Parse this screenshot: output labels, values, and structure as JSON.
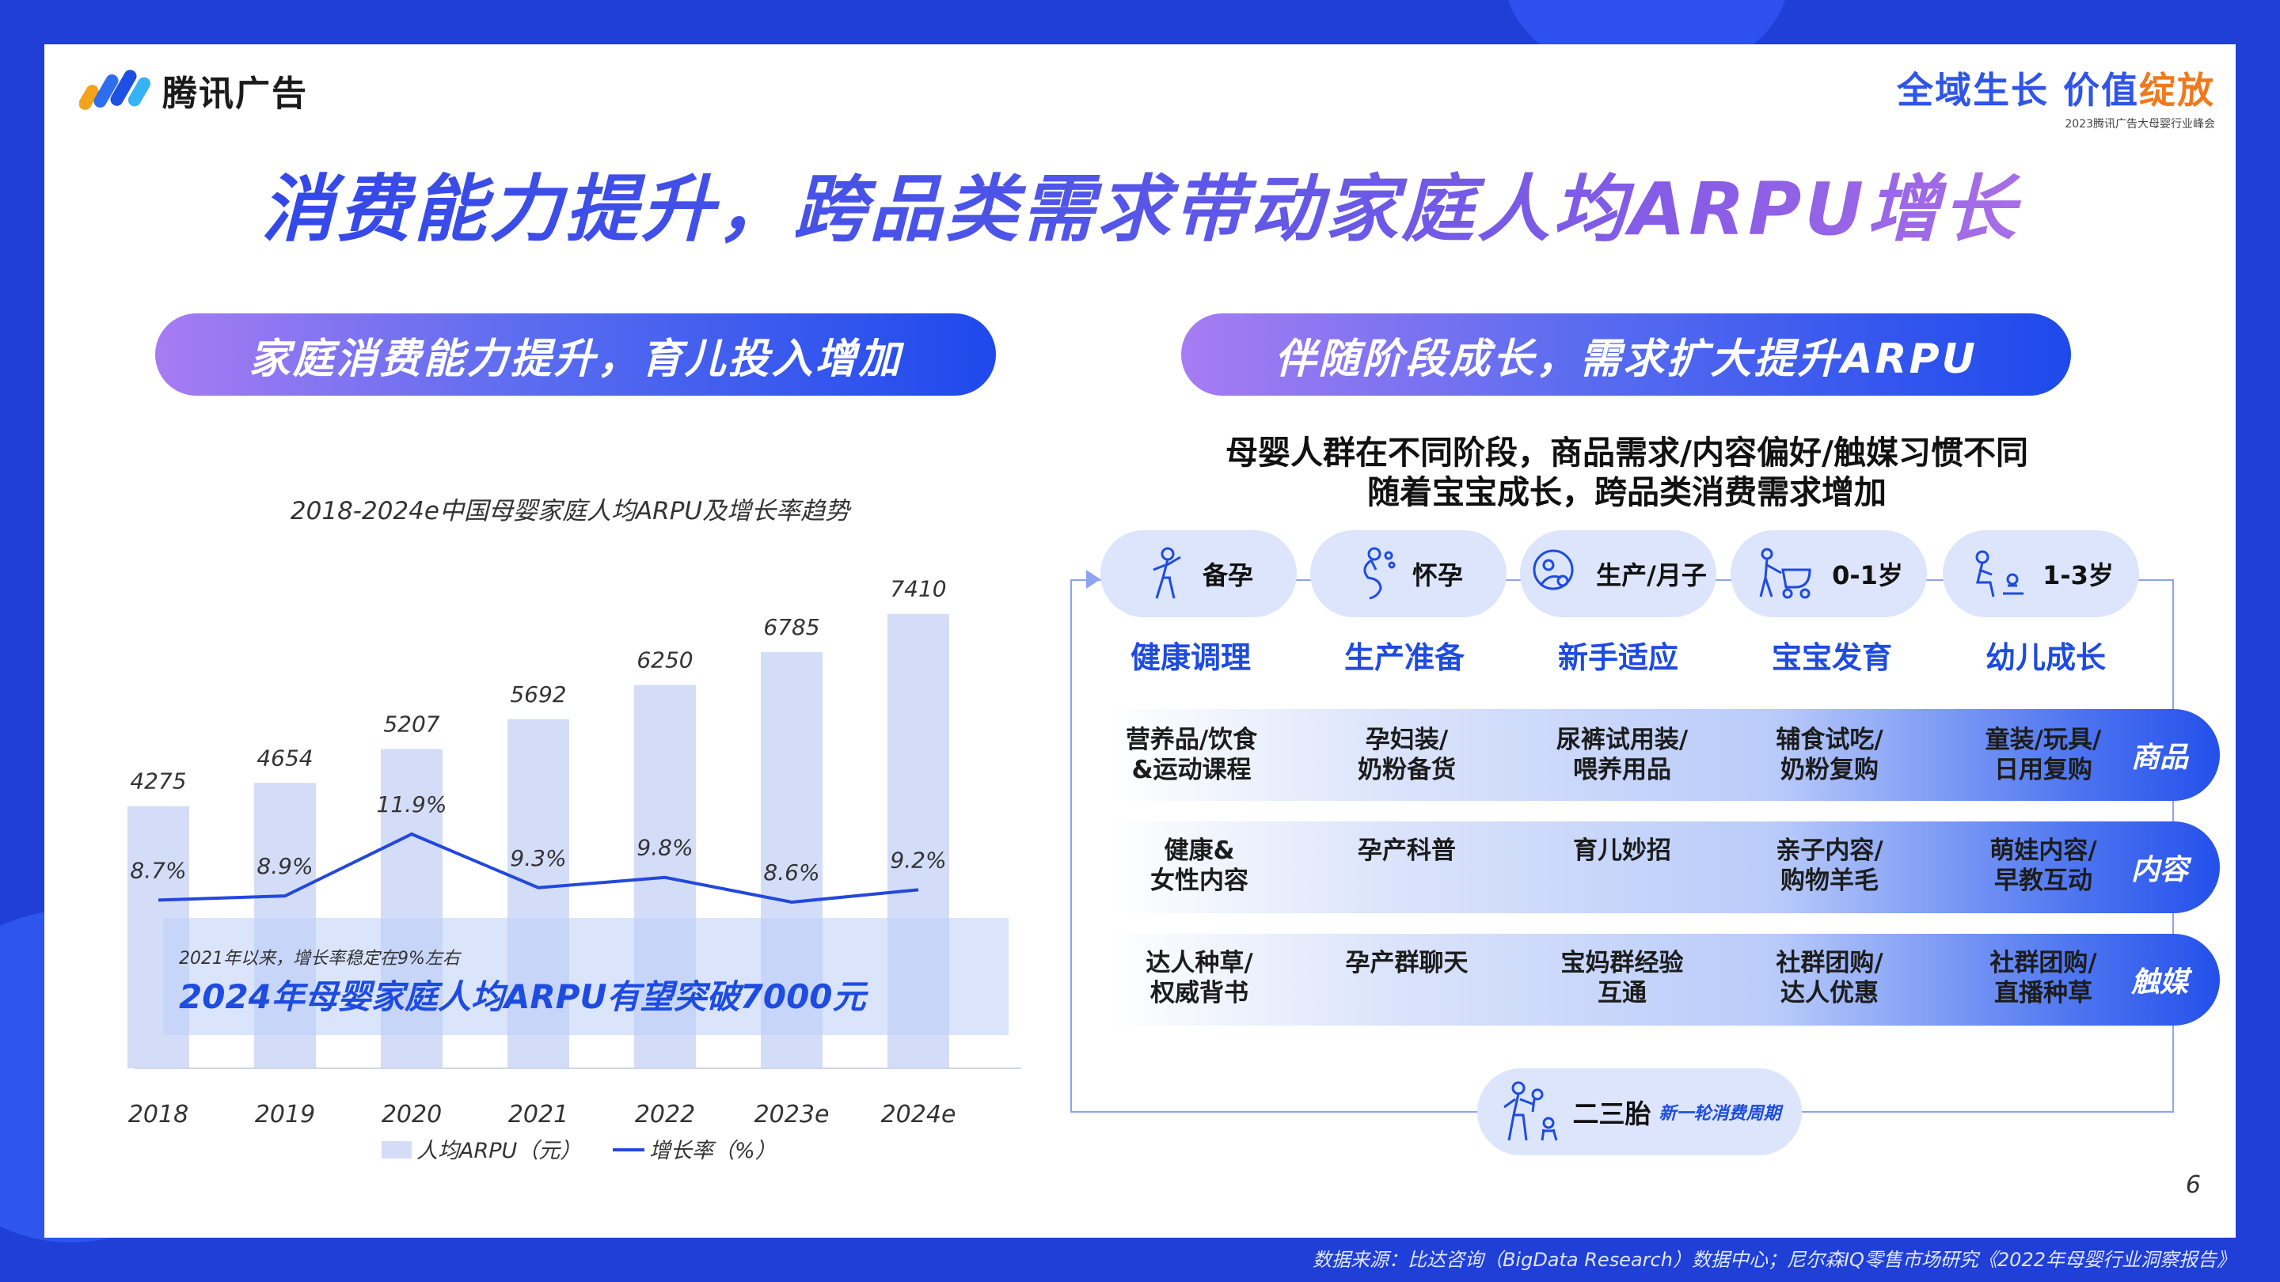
{
  "brand": {
    "name": "腾讯广告"
  },
  "slogan": {
    "part1": "全域生长",
    "part2": "价值",
    "part3": "绽放",
    "sub": "2023腾讯广告大母婴行业峰会"
  },
  "title": "消费能力提升，跨品类需求带动家庭人均ARPU增长",
  "left_pill": "家庭消费能力提升，育儿投入增加",
  "right_pill": "伴随阶段成长，需求扩大提升ARPU",
  "chart_title": "2018-2024e中国母婴家庭人均ARPU及增长率趋势",
  "chart_data": {
    "type": "bar",
    "categories": [
      "2018",
      "2019",
      "2020",
      "2021",
      "2022",
      "2023e",
      "2024e"
    ],
    "series": [
      {
        "name": "人均ARPU（元）",
        "type": "bar",
        "values": [
          4275,
          4654,
          5207,
          5692,
          6250,
          6785,
          7410
        ],
        "value_labels": [
          "4275",
          "4654",
          "5207",
          "5692",
          "6250",
          "6785",
          "7410"
        ]
      },
      {
        "name": "增长率（%）",
        "type": "line",
        "values": [
          8.7,
          8.9,
          11.9,
          9.3,
          9.8,
          8.6,
          9.2
        ],
        "value_labels": [
          "8.7%",
          "8.9%",
          "11.9%",
          "9.3%",
          "9.8%",
          "8.6%",
          "9.2%"
        ]
      }
    ],
    "legend": [
      "人均ARPU（元）",
      "增长率（%）"
    ],
    "legend_position": "bottom",
    "annotation": {
      "small": "2021年以来，增长率稳定在9%左右",
      "big": "2024年母婴家庭人均ARPU有望突破7000元"
    },
    "colors": {
      "bar": "#d4ddf8",
      "line": "#2348db",
      "overlay": "#bccdf7"
    }
  },
  "right_subtitle": [
    "母婴人群在不同阶段，商品需求/内容偏好/触媒习惯不同",
    "随着宝宝成长，跨品类消费需求增加"
  ],
  "stages": [
    {
      "label": "备孕",
      "goal": "健康调理",
      "icon": "pregnant-prep-icon"
    },
    {
      "label": "怀孕",
      "goal": "生产准备",
      "icon": "pregnancy-icon"
    },
    {
      "label": "生产/月子",
      "goal": "新手适应",
      "icon": "mother-baby-icon"
    },
    {
      "label": "0-1岁",
      "goal": "宝宝发育",
      "icon": "stroller-icon"
    },
    {
      "label": "1-3岁",
      "goal": "幼儿成长",
      "icon": "toddler-play-icon"
    }
  ],
  "rows": [
    {
      "label": "商品",
      "cells": [
        [
          "营养品/饮食",
          "&运动课程"
        ],
        [
          "孕妇装/",
          "奶粉备货"
        ],
        [
          "尿裤试用装/",
          "喂养用品"
        ],
        [
          "辅食试吃/",
          "奶粉复购"
        ],
        [
          "童装/玩具/",
          "日用复购"
        ]
      ]
    },
    {
      "label": "内容",
      "cells": [
        [
          "健康&",
          "女性内容"
        ],
        [
          "孕产科普"
        ],
        [
          "育儿妙招"
        ],
        [
          "亲子内容/",
          "购物羊毛"
        ],
        [
          "萌娃内容/",
          "早教互动"
        ]
      ]
    },
    {
      "label": "触媒",
      "cells": [
        [
          "达人种草/",
          "权威背书"
        ],
        [
          "孕产群聊天"
        ],
        [
          "宝妈群经验",
          "互通"
        ],
        [
          "社群团购/",
          "达人优惠"
        ],
        [
          "社群团购/",
          "直播种草"
        ]
      ]
    }
  ],
  "cycle": {
    "label": "二三胎",
    "note": "新一轮消费周期",
    "icon": "family-kids-icon"
  },
  "page_number": "6",
  "source": "数据来源：比达咨询（BigData Research）数据中心；尼尔森IQ零售市场研究《2022年母婴行业洞察报告》"
}
